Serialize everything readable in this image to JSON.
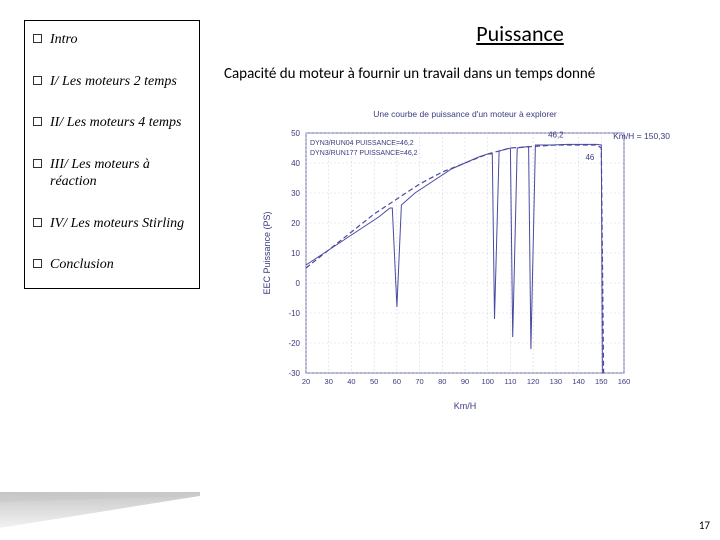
{
  "nav": {
    "items": [
      {
        "label": "Intro"
      },
      {
        "label": "I/ Les moteurs 2 temps"
      },
      {
        "label": "II/ Les moteurs 4 temps"
      },
      {
        "label": "III/ Les moteurs à réaction"
      },
      {
        "label": "IV/ Les moteurs Stirling"
      },
      {
        "label": "Conclusion"
      }
    ]
  },
  "main": {
    "title": "Puissance",
    "body": "Capacité du moteur à fournir un travail dans un temps donné",
    "page_number": "17"
  },
  "chart": {
    "type": "line",
    "title": "Une courbe de puissance d'un moteur à explorer",
    "title_fontsize": 8.5,
    "sublabel1": "DYN3/RUN04 PUISSANCE=46,2",
    "sublabel2": "DYN3/RUN177 PUISSANCE=46,2",
    "annot_right": "Km/H = 150,30",
    "annot_a": "46,2",
    "annot_b": "46",
    "ylabel": "EEC Puissance (PS)",
    "xlabel": "Km/H",
    "ylim": [
      -30,
      50
    ],
    "ytick_step": 10,
    "yticks": [
      50,
      40,
      30,
      20,
      10,
      0,
      -10,
      -20,
      -30
    ],
    "xlim": [
      20,
      160
    ],
    "xticks": [
      20,
      30,
      40,
      50,
      60,
      70,
      80,
      90,
      100,
      110,
      120,
      130,
      140,
      150,
      160
    ],
    "background_color": "#ffffff",
    "border_color": "#6a6aa0",
    "grid_color": "#c8c8e0",
    "text_color": "#3a3a80",
    "series": [
      {
        "name": "run04",
        "color": "#4a4aa0",
        "linewidth": 1.0,
        "dash": "none",
        "points": [
          [
            20,
            6
          ],
          [
            28,
            10
          ],
          [
            36,
            14
          ],
          [
            44,
            18
          ],
          [
            52,
            22
          ],
          [
            57,
            25
          ],
          [
            58,
            25
          ],
          [
            60,
            -8
          ],
          [
            62,
            26
          ],
          [
            68,
            30
          ],
          [
            76,
            34
          ],
          [
            84,
            38
          ],
          [
            90,
            40
          ],
          [
            96,
            42
          ],
          [
            100,
            43
          ],
          [
            102,
            43
          ],
          [
            103,
            -12
          ],
          [
            105,
            44
          ],
          [
            110,
            45
          ],
          [
            111,
            -18
          ],
          [
            113,
            45
          ],
          [
            118,
            45.5
          ],
          [
            119,
            -22
          ],
          [
            121,
            46
          ],
          [
            128,
            46
          ],
          [
            135,
            46.2
          ],
          [
            140,
            46.2
          ],
          [
            148,
            46.2
          ],
          [
            150,
            46
          ],
          [
            150.5,
            -30
          ],
          [
            151,
            -30
          ]
        ]
      },
      {
        "name": "run177",
        "color": "#4a4aa0",
        "linewidth": 1.2,
        "dash": "5,3",
        "points": [
          [
            20,
            5
          ],
          [
            30,
            11
          ],
          [
            40,
            17
          ],
          [
            50,
            23
          ],
          [
            60,
            28
          ],
          [
            70,
            33
          ],
          [
            80,
            37
          ],
          [
            90,
            40
          ],
          [
            100,
            43
          ],
          [
            110,
            45
          ],
          [
            120,
            45.5
          ],
          [
            130,
            46
          ],
          [
            140,
            46
          ],
          [
            148,
            46
          ],
          [
            150,
            45
          ],
          [
            151,
            -30
          ]
        ]
      }
    ]
  }
}
